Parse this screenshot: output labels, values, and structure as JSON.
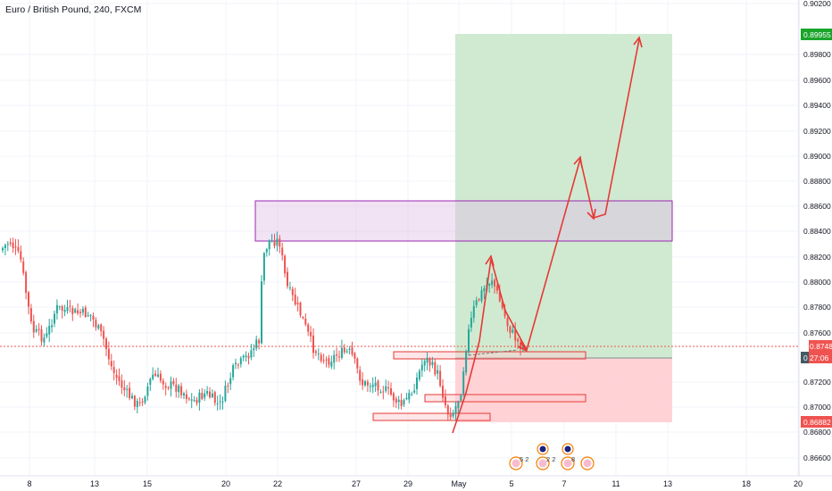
{
  "header": {
    "symbol_title": "Euro / British Pound, 240, FXCM"
  },
  "price_axis": {
    "ticks": [
      "0.90200",
      "0.89800",
      "0.89600",
      "0.89400",
      "0.89200",
      "0.89000",
      "0.88800",
      "0.88600",
      "0.88400",
      "0.88200",
      "0.88000",
      "0.87800",
      "0.87600",
      "0.87200",
      "0.87000",
      "0.86800",
      "0.86600"
    ],
    "target_label": "0.89955",
    "current_price_label": "0.87481",
    "countdown_label": "27:06",
    "stop_label": "0.86882",
    "cursor_marker": "0"
  },
  "time_axis": {
    "labels": [
      "8",
      "13",
      "15",
      "20",
      "22",
      "27",
      "29",
      "May",
      "5",
      "7",
      "11",
      "13",
      "18",
      "20"
    ]
  },
  "event_markers": [
    {
      "top": "",
      "bottom": "5 2"
    },
    {
      "top": "",
      "bottom": "2 2"
    },
    {
      "top": "",
      "bottom": "8"
    },
    {
      "top": "",
      "bottom": ""
    }
  ],
  "colors": {
    "bull": "#26a69a",
    "bear": "#ef5350",
    "target_zone": "#c8e6c9",
    "stop_zone": "#ffcdd2",
    "supply_box": "#9c27b0",
    "projection": "#e53935",
    "target_tag": "#1aa52b",
    "price_tag": "#ef5350",
    "countdown_tag": "#455a64",
    "grid": "#f0f3fa"
  }
}
